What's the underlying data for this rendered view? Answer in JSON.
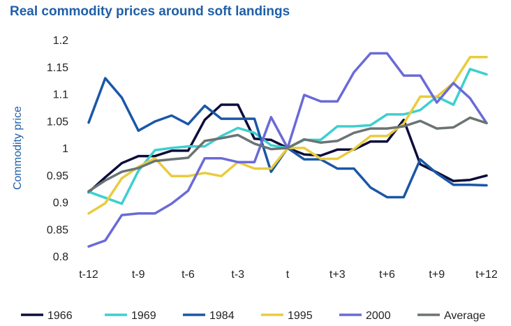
{
  "chart_data": {
    "type": "line",
    "title": "Real commodity prices around soft landings",
    "ylabel": "Commodity price",
    "xlabel": "",
    "ylim": [
      0.8,
      1.2
    ],
    "yticks": [
      "0.8",
      "0.85",
      "0.9",
      "0.95",
      "1",
      "1.05",
      "1.1",
      "1.15",
      "1.2"
    ],
    "x": [
      -12,
      -11,
      -10,
      -9,
      -8,
      -7,
      -6,
      -5,
      -4,
      -3,
      -2,
      -1,
      0,
      1,
      2,
      3,
      4,
      5,
      6,
      7,
      8,
      9,
      10,
      11,
      12
    ],
    "xtick_labels": [
      {
        "x": -12,
        "label": "t-12"
      },
      {
        "x": -9,
        "label": "t-9"
      },
      {
        "x": -6,
        "label": "t-6"
      },
      {
        "x": -3,
        "label": "t-3"
      },
      {
        "x": 0,
        "label": "t"
      },
      {
        "x": 3,
        "label": "t+3"
      },
      {
        "x": 6,
        "label": "t+6"
      },
      {
        "x": 9,
        "label": "t+9"
      },
      {
        "x": 12,
        "label": "t+12"
      }
    ],
    "grid": false,
    "legend_position": "bottom",
    "series": [
      {
        "name": "1966",
        "color": "#0d0d3b",
        "values": [
          0.918,
          0.946,
          0.972,
          0.985,
          0.985,
          0.995,
          0.995,
          1.052,
          1.08,
          1.08,
          1.017,
          1.015,
          1.0,
          0.988,
          0.986,
          0.997,
          0.997,
          1.012,
          1.012,
          1.052,
          0.97,
          0.955,
          0.939,
          0.941,
          0.949
        ]
      },
      {
        "name": "1969",
        "color": "#3ecfcf",
        "values": [
          0.919,
          0.908,
          0.897,
          0.958,
          0.996,
          1.0,
          1.003,
          1.003,
          1.022,
          1.037,
          1.028,
          1.005,
          1.0,
          1.015,
          1.015,
          1.04,
          1.04,
          1.042,
          1.062,
          1.062,
          1.07,
          1.095,
          1.08,
          1.146,
          1.136
        ]
      },
      {
        "name": "1984",
        "color": "#1a57a7",
        "values": [
          1.047,
          1.129,
          1.093,
          1.032,
          1.049,
          1.06,
          1.044,
          1.078,
          1.054,
          1.054,
          1.054,
          0.956,
          1.0,
          0.979,
          0.979,
          0.962,
          0.962,
          0.927,
          0.909,
          0.909,
          0.979,
          0.953,
          0.932,
          0.932,
          0.931
        ]
      },
      {
        "name": "1995",
        "color": "#e8cc3d",
        "values": [
          0.879,
          0.898,
          0.944,
          0.965,
          0.981,
          0.948,
          0.948,
          0.954,
          0.948,
          0.974,
          0.962,
          0.962,
          1.0,
          1.0,
          0.98,
          0.98,
          0.998,
          1.022,
          1.022,
          1.045,
          1.095,
          1.095,
          1.12,
          1.168,
          1.168
        ]
      },
      {
        "name": "2000",
        "color": "#6a6ad8",
        "values": [
          0.818,
          0.829,
          0.876,
          0.879,
          0.879,
          0.897,
          0.921,
          0.981,
          0.981,
          0.974,
          0.974,
          1.057,
          1.0,
          1.098,
          1.086,
          1.086,
          1.14,
          1.175,
          1.175,
          1.134,
          1.134,
          1.084,
          1.12,
          1.092,
          1.046
        ]
      },
      {
        "name": "Average",
        "color": "#6b7373",
        "values": [
          0.92,
          0.94,
          0.956,
          0.963,
          0.976,
          0.979,
          0.982,
          1.013,
          1.018,
          1.024,
          1.008,
          0.998,
          1.0,
          1.016,
          1.01,
          1.013,
          1.028,
          1.036,
          1.036,
          1.04,
          1.05,
          1.036,
          1.038,
          1.056,
          1.046
        ]
      }
    ]
  }
}
